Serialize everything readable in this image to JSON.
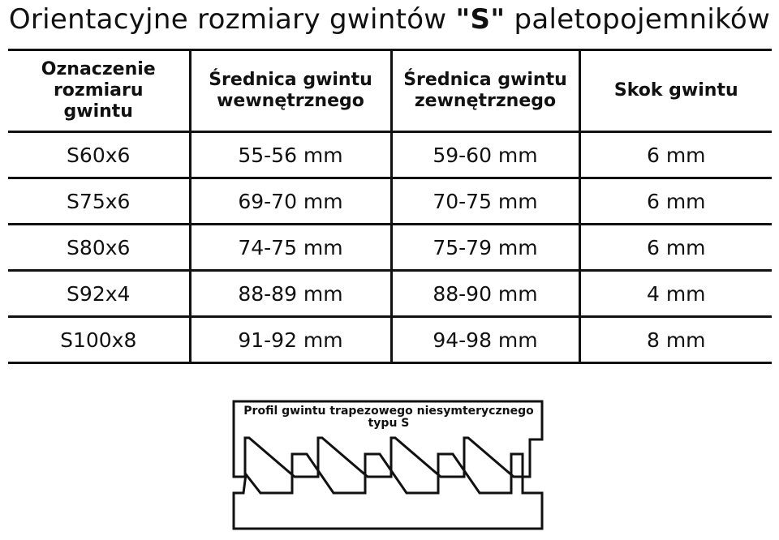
{
  "title": {
    "prefix": "Orientacyjne rozmiary gwintów ",
    "highlight": "\"S\"",
    "suffix": " paletopojemników"
  },
  "table": {
    "headers": [
      "Oznaczenie rozmiaru gwintu",
      "Średnica gwintu wewnętrznego",
      "Średnica gwintu zewnętrznego",
      "Skok gwintu"
    ],
    "rows": [
      [
        "S60x6",
        "55-56 mm",
        "59-60 mm",
        "6 mm"
      ],
      [
        "S75x6",
        "69-70 mm",
        "70-75 mm",
        "6 mm"
      ],
      [
        "S80x6",
        "74-75 mm",
        "75-79 mm",
        "6 mm"
      ],
      [
        "S92x4",
        "88-89 mm",
        "88-90 mm",
        "4 mm"
      ],
      [
        "S100x8",
        "91-92 mm",
        "94-98 mm",
        "8 mm"
      ]
    ]
  },
  "diagram": {
    "label_line1": "Profil gwintu trapezowego niesymterycznego",
    "label_line2": "typu S"
  }
}
